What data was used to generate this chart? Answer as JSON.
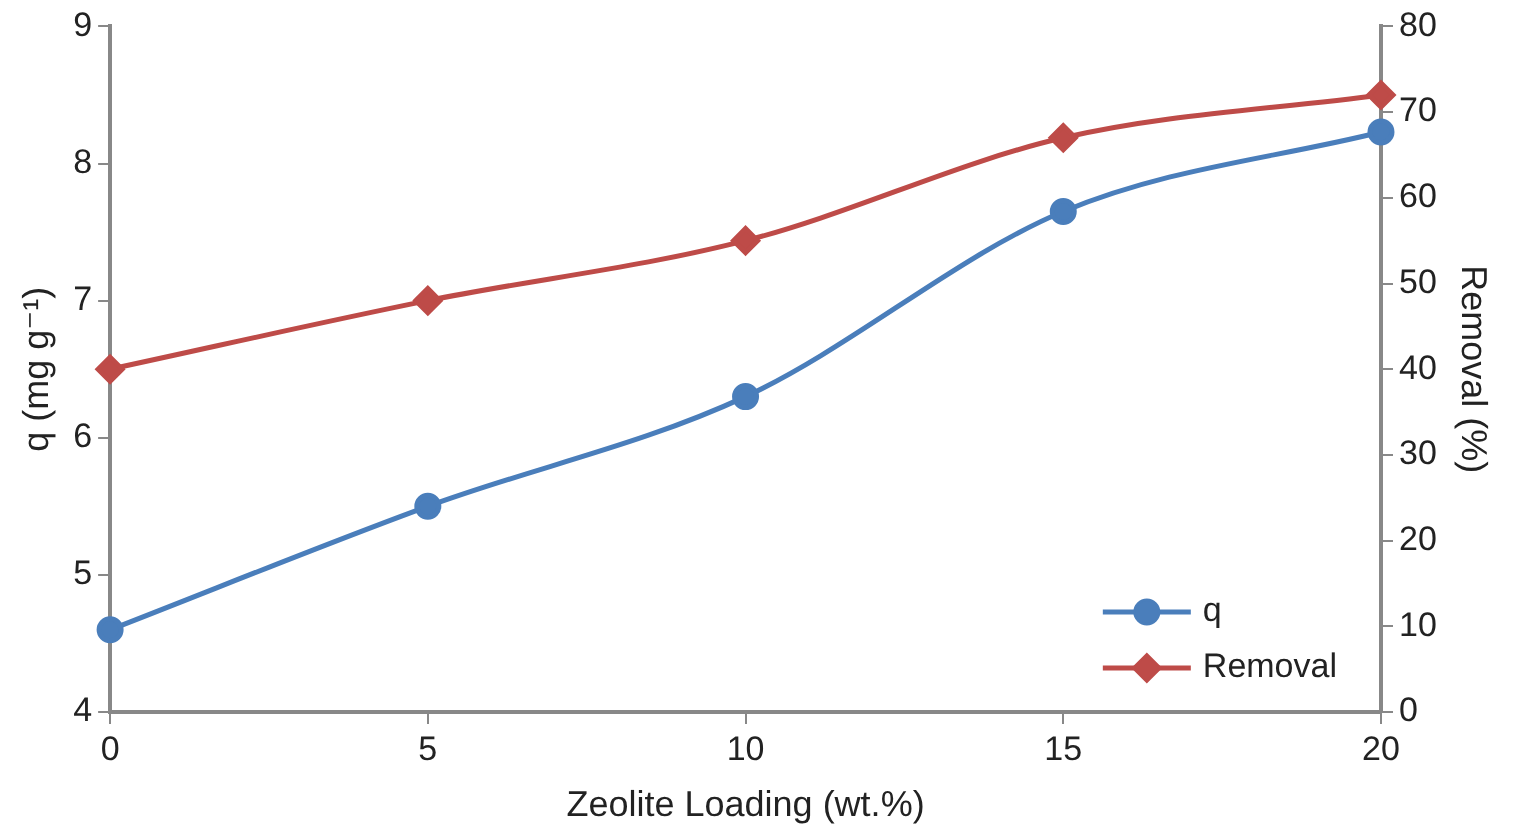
{
  "chart_data": {
    "type": "line",
    "xlabel": "Zeolite Loading (wt.%)",
    "ylabel": "q (mg g⁻¹)",
    "y2label": "Removal (%)",
    "x": [
      0,
      5,
      10,
      15,
      20
    ],
    "xlim": [
      0,
      20
    ],
    "xticks": [
      0,
      5,
      10,
      15,
      20
    ],
    "ylim": [
      4,
      9
    ],
    "yticks": [
      4,
      5,
      6,
      7,
      8,
      9
    ],
    "y2lim": [
      0,
      80
    ],
    "y2ticks": [
      0,
      10,
      20,
      30,
      40,
      50,
      60,
      70,
      80
    ],
    "series": [
      {
        "name": "q",
        "color": "#4a7ebb",
        "values": [
          4.6,
          5.5,
          6.3,
          7.65,
          8.23
        ],
        "marker": "circle"
      },
      {
        "name": "Removal",
        "color": "#be4b48",
        "values": [
          40,
          48,
          55,
          67,
          72
        ],
        "axis": "y2",
        "marker": "diamond"
      }
    ],
    "legend": "bottom right",
    "grid": false,
    "line_style": "solid"
  }
}
